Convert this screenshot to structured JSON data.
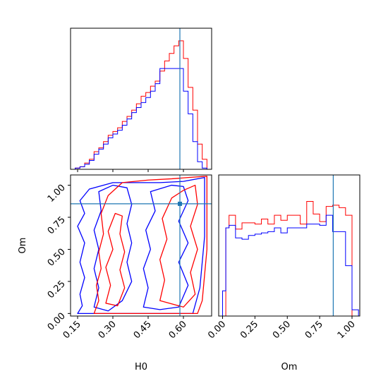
{
  "chart_data": {
    "type": "corner",
    "colors": {
      "series_a": "#ff0000",
      "series_b": "#0000ff",
      "truth": "#1f77b4"
    },
    "truth": {
      "H0": 0.585,
      "Om": 0.855
    },
    "panels": [
      {
        "id": "hist_H0",
        "type": "step-histogram",
        "xlim": [
          0.12,
          0.72
        ],
        "ylim": [
          0,
          1.12
        ],
        "edges": [
          0.12,
          0.14,
          0.16,
          0.18,
          0.2,
          0.22,
          0.24,
          0.26,
          0.28,
          0.3,
          0.32,
          0.34,
          0.36,
          0.38,
          0.4,
          0.42,
          0.44,
          0.46,
          0.48,
          0.5,
          0.52,
          0.54,
          0.56,
          0.58,
          0.6,
          0.62,
          0.64,
          0.66,
          0.68,
          0.7
        ],
        "series": [
          {
            "color": "#ff0000",
            "values": [
              0.0,
              0.01,
              0.02,
              0.05,
              0.08,
              0.14,
              0.17,
              0.22,
              0.27,
              0.3,
              0.33,
              0.38,
              0.42,
              0.47,
              0.52,
              0.58,
              0.61,
              0.66,
              0.7,
              0.78,
              0.86,
              0.92,
              0.98,
              1.02,
              0.88,
              0.65,
              0.47,
              0.2,
              0.08
            ]
          },
          {
            "color": "#0000ff",
            "values": [
              0.0,
              0.01,
              0.02,
              0.04,
              0.07,
              0.12,
              0.16,
              0.2,
              0.25,
              0.28,
              0.31,
              0.35,
              0.4,
              0.45,
              0.49,
              0.53,
              0.57,
              0.62,
              0.68,
              0.8,
              0.8,
              0.8,
              0.8,
              0.8,
              0.62,
              0.44,
              0.22,
              0.06,
              0.01
            ]
          }
        ]
      },
      {
        "id": "hist_Om",
        "type": "step-histogram",
        "xlim": [
          -0.03,
          1.06
        ],
        "ylim": [
          0,
          1.12
        ],
        "edges": [
          0.0,
          0.025,
          0.05,
          0.1,
          0.15,
          0.2,
          0.25,
          0.3,
          0.35,
          0.4,
          0.45,
          0.5,
          0.55,
          0.6,
          0.65,
          0.7,
          0.75,
          0.8,
          0.85,
          0.9,
          0.95,
          1.0,
          1.05
        ],
        "series": [
          {
            "color": "#ff0000",
            "values": [
              0.0,
              0.7,
              0.8,
              0.69,
              0.74,
              0.74,
              0.73,
              0.77,
              0.73,
              0.8,
              0.76,
              0.8,
              0.8,
              0.73,
              0.91,
              0.81,
              0.75,
              0.87,
              0.88,
              0.86,
              0.8,
              0.0
            ]
          },
          {
            "color": "#0000ff",
            "values": [
              0.2,
              0.7,
              0.72,
              0.62,
              0.61,
              0.64,
              0.65,
              0.66,
              0.67,
              0.7,
              0.66,
              0.7,
              0.7,
              0.7,
              0.73,
              0.73,
              0.72,
              0.8,
              0.67,
              0.67,
              0.4,
              0.05
            ]
          }
        ]
      },
      {
        "id": "contour_H0_Om",
        "type": "contour",
        "xlim": [
          0.12,
          0.72
        ],
        "ylim": [
          -0.02,
          1.08
        ],
        "contours": [
          {
            "color": "#0000ff",
            "points": [
              [
                0.15,
                0.0
              ],
              [
                0.17,
                0.06
              ],
              [
                0.16,
                0.15
              ],
              [
                0.18,
                0.28
              ],
              [
                0.16,
                0.4
              ],
              [
                0.18,
                0.55
              ],
              [
                0.15,
                0.68
              ],
              [
                0.18,
                0.78
              ],
              [
                0.16,
                0.88
              ],
              [
                0.2,
                0.97
              ],
              [
                0.3,
                1.02
              ],
              [
                0.4,
                1.02
              ],
              [
                0.5,
                1.02
              ],
              [
                0.6,
                1.03
              ],
              [
                0.69,
                1.06
              ],
              [
                0.69,
                0.6
              ],
              [
                0.67,
                0.2
              ],
              [
                0.64,
                0.0
              ]
            ]
          },
          {
            "color": "#0000ff",
            "points": [
              [
                0.22,
                0.05
              ],
              [
                0.24,
                0.2
              ],
              [
                0.22,
                0.35
              ],
              [
                0.24,
                0.5
              ],
              [
                0.22,
                0.65
              ],
              [
                0.25,
                0.8
              ],
              [
                0.24,
                0.95
              ],
              [
                0.3,
                1.0
              ],
              [
                0.36,
                0.98
              ],
              [
                0.38,
                0.85
              ],
              [
                0.36,
                0.7
              ],
              [
                0.38,
                0.55
              ],
              [
                0.36,
                0.4
              ],
              [
                0.38,
                0.25
              ],
              [
                0.34,
                0.1
              ],
              [
                0.28,
                0.02
              ]
            ]
          },
          {
            "color": "#0000ff",
            "points": [
              [
                0.43,
                0.05
              ],
              [
                0.45,
                0.2
              ],
              [
                0.43,
                0.35
              ],
              [
                0.46,
                0.5
              ],
              [
                0.44,
                0.65
              ],
              [
                0.48,
                0.8
              ],
              [
                0.46,
                0.95
              ],
              [
                0.55,
                1.0
              ],
              [
                0.6,
                0.99
              ],
              [
                0.62,
                0.88
              ],
              [
                0.58,
                0.72
              ],
              [
                0.62,
                0.55
              ],
              [
                0.58,
                0.4
              ],
              [
                0.62,
                0.22
              ],
              [
                0.58,
                0.05
              ],
              [
                0.5,
                0.03
              ]
            ]
          },
          {
            "color": "#ff0000",
            "points": [
              [
                0.22,
                0.0
              ],
              [
                0.24,
                0.1
              ],
              [
                0.23,
                0.22
              ],
              [
                0.25,
                0.35
              ],
              [
                0.24,
                0.48
              ],
              [
                0.26,
                0.62
              ],
              [
                0.25,
                0.78
              ],
              [
                0.28,
                0.92
              ],
              [
                0.34,
                1.02
              ],
              [
                0.45,
                1.04
              ],
              [
                0.55,
                1.05
              ],
              [
                0.62,
                1.06
              ],
              [
                0.7,
                1.07
              ],
              [
                0.7,
                0.5
              ],
              [
                0.68,
                0.1
              ],
              [
                0.66,
                0.0
              ]
            ]
          },
          {
            "color": "#ff0000",
            "points": [
              [
                0.27,
                0.08
              ],
              [
                0.29,
                0.22
              ],
              [
                0.27,
                0.36
              ],
              [
                0.3,
                0.5
              ],
              [
                0.28,
                0.64
              ],
              [
                0.31,
                0.78
              ],
              [
                0.34,
                0.76
              ],
              [
                0.33,
                0.62
              ],
              [
                0.35,
                0.48
              ],
              [
                0.33,
                0.34
              ],
              [
                0.35,
                0.2
              ],
              [
                0.32,
                0.06
              ]
            ]
          },
          {
            "color": "#ff0000",
            "points": [
              [
                0.5,
                0.1
              ],
              [
                0.52,
                0.26
              ],
              [
                0.5,
                0.42
              ],
              [
                0.53,
                0.58
              ],
              [
                0.51,
                0.74
              ],
              [
                0.55,
                0.9
              ],
              [
                0.6,
                0.96
              ],
              [
                0.65,
                1.0
              ],
              [
                0.66,
                0.85
              ],
              [
                0.63,
                0.68
              ],
              [
                0.66,
                0.5
              ],
              [
                0.63,
                0.32
              ],
              [
                0.65,
                0.15
              ],
              [
                0.6,
                0.05
              ]
            ]
          }
        ]
      }
    ],
    "axes": {
      "H0": {
        "label": "H0",
        "ticks": [
          0.15,
          0.3,
          0.45,
          0.6
        ],
        "tick_labels": [
          "0.15",
          "0.30",
          "0.45",
          "0.60"
        ]
      },
      "Om": {
        "label": "Om",
        "ticks": [
          0.0,
          0.25,
          0.5,
          0.75,
          1.0
        ],
        "tick_labels": [
          "0.00",
          "0.25",
          "0.50",
          "0.75",
          "1.00"
        ]
      }
    }
  }
}
